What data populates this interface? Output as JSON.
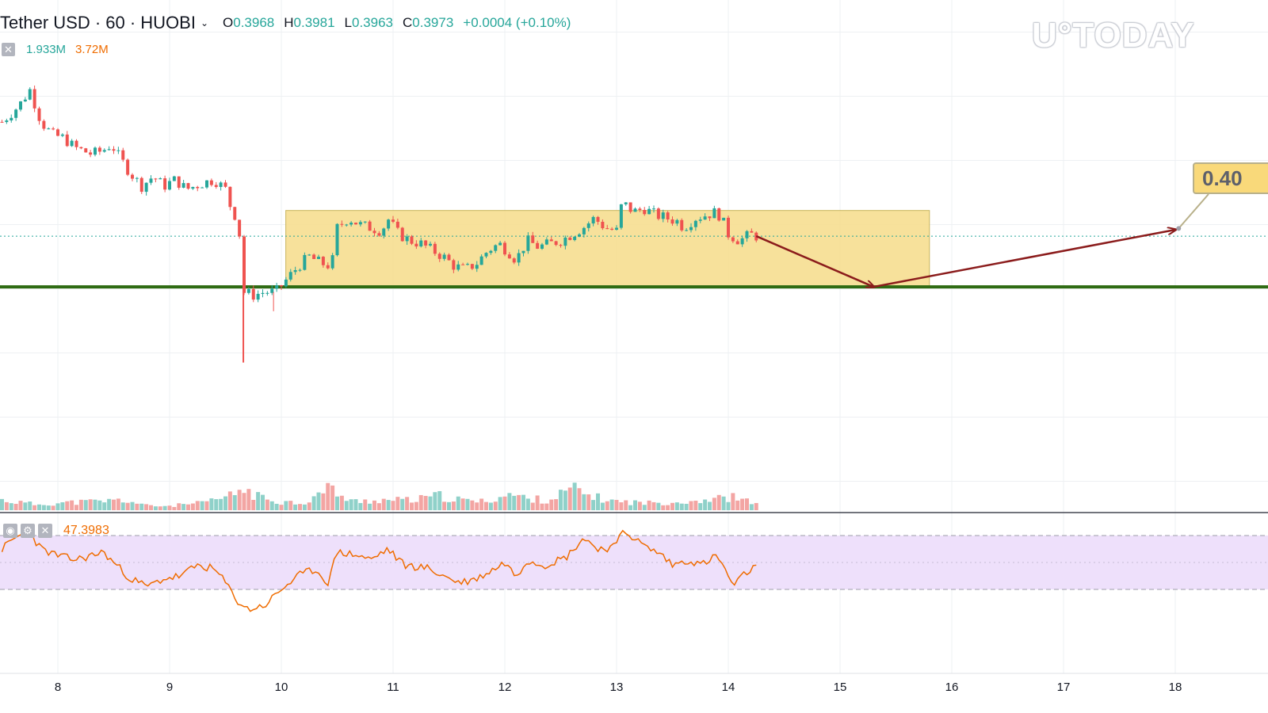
{
  "header": {
    "symbol": "Tether USD · 60 · HUOBI",
    "ohlc": [
      {
        "key": "O",
        "value": "0.3968"
      },
      {
        "key": "H",
        "value": "0.3981"
      },
      {
        "key": "L",
        "value": "0.3963"
      },
      {
        "key": "C",
        "value": "0.3973"
      }
    ],
    "change": "+0.0004 (+0.10%)"
  },
  "volume_legend": {
    "value": "1.933M",
    "ma": "3.72M"
  },
  "rsi_legend": {
    "value": "47.3983"
  },
  "watermark": "U°TODAY",
  "target_label": "0.40",
  "colors": {
    "up": "#26a69a",
    "down": "#ef5350",
    "support": "#2e6b12",
    "arrow": "#8b1c1c",
    "range_fill": "#f6dc8a",
    "rsi_line": "#ef6c00",
    "rsi_band": "#eee0fb"
  },
  "chart_data": {
    "type": "candlestick",
    "x_labels": [
      "8",
      "9",
      "10",
      "11",
      "12",
      "13",
      "14",
      "15",
      "16",
      "17",
      "18"
    ],
    "y_range": [
      0.35,
      0.43
    ],
    "support_level": 0.3853,
    "range_box": {
      "x_start": 10.04,
      "x_end": 15.8,
      "y_low": 0.3853,
      "y_high": 0.3972
    },
    "last_price": 0.3932,
    "projection": [
      [
        14.25,
        0.3932
      ],
      [
        15.3,
        0.3853
      ],
      [
        18.0,
        0.3942
      ]
    ],
    "target_point": [
      18.03,
      0.3944
    ],
    "rsi_bands": [
      30,
      70
    ],
    "price_path": [
      [
        7.5,
        0.411
      ],
      [
        7.65,
        0.4135
      ],
      [
        7.75,
        0.416
      ],
      [
        7.85,
        0.411
      ],
      [
        7.95,
        0.409
      ],
      [
        8.05,
        0.4085
      ],
      [
        8.15,
        0.407
      ],
      [
        8.3,
        0.406
      ],
      [
        8.4,
        0.4065
      ],
      [
        8.48,
        0.4075
      ],
      [
        8.55,
        0.4055
      ],
      [
        8.65,
        0.403
      ],
      [
        8.75,
        0.401
      ],
      [
        8.85,
        0.4025
      ],
      [
        8.95,
        0.401
      ],
      [
        9.05,
        0.402
      ],
      [
        9.15,
        0.4005
      ],
      [
        9.3,
        0.4015
      ],
      [
        9.4,
        0.402
      ],
      [
        9.5,
        0.4005
      ],
      [
        9.55,
        0.3975
      ],
      [
        9.6,
        0.396
      ],
      [
        9.63,
        0.393
      ],
      [
        9.66,
        0.3845
      ],
      [
        9.75,
        0.384
      ],
      [
        9.85,
        0.3845
      ],
      [
        9.95,
        0.3845
      ],
      [
        10.05,
        0.3865
      ],
      [
        10.15,
        0.3885
      ],
      [
        10.25,
        0.39
      ],
      [
        10.35,
        0.389
      ],
      [
        10.45,
        0.3885
      ],
      [
        10.5,
        0.3945
      ],
      [
        10.6,
        0.396
      ],
      [
        10.7,
        0.395
      ],
      [
        10.8,
        0.3945
      ],
      [
        10.9,
        0.394
      ],
      [
        10.95,
        0.396
      ],
      [
        11.05,
        0.3935
      ],
      [
        11.15,
        0.3925
      ],
      [
        11.25,
        0.392
      ],
      [
        11.35,
        0.391
      ],
      [
        11.45,
        0.39
      ],
      [
        11.55,
        0.3885
      ],
      [
        11.65,
        0.388
      ],
      [
        11.75,
        0.389
      ],
      [
        11.85,
        0.391
      ],
      [
        11.95,
        0.392
      ],
      [
        12.05,
        0.3905
      ],
      [
        12.1,
        0.3895
      ],
      [
        12.2,
        0.3925
      ],
      [
        12.3,
        0.3915
      ],
      [
        12.4,
        0.392
      ],
      [
        12.5,
        0.3925
      ],
      [
        12.6,
        0.3935
      ],
      [
        12.7,
        0.3945
      ],
      [
        12.8,
        0.396
      ],
      [
        12.9,
        0.3945
      ],
      [
        13.0,
        0.394
      ],
      [
        13.05,
        0.3985
      ],
      [
        13.15,
        0.397
      ],
      [
        13.25,
        0.3975
      ],
      [
        13.35,
        0.3965
      ],
      [
        13.45,
        0.396
      ],
      [
        13.55,
        0.3955
      ],
      [
        13.6,
        0.3945
      ],
      [
        13.7,
        0.396
      ],
      [
        13.8,
        0.3965
      ],
      [
        13.9,
        0.397
      ],
      [
        13.95,
        0.3955
      ],
      [
        14.0,
        0.3935
      ],
      [
        14.1,
        0.3925
      ],
      [
        14.2,
        0.3935
      ],
      [
        14.25,
        0.3932
      ]
    ],
    "volume_profile": [
      [
        7.5,
        0.35
      ],
      [
        7.8,
        0.2
      ],
      [
        8.0,
        0.25
      ],
      [
        8.3,
        0.3
      ],
      [
        8.6,
        0.35
      ],
      [
        8.8,
        0.15
      ],
      [
        9.0,
        0.15
      ],
      [
        9.3,
        0.25
      ],
      [
        9.55,
        0.5
      ],
      [
        9.65,
        0.75
      ],
      [
        9.8,
        0.45
      ],
      [
        10.0,
        0.3
      ],
      [
        10.2,
        0.25
      ],
      [
        10.45,
        0.8
      ],
      [
        10.6,
        0.3
      ],
      [
        10.9,
        0.35
      ],
      [
        11.2,
        0.35
      ],
      [
        11.4,
        0.5
      ],
      [
        11.6,
        0.35
      ],
      [
        11.8,
        0.3
      ],
      [
        12.05,
        0.55
      ],
      [
        12.2,
        0.4
      ],
      [
        12.4,
        0.35
      ],
      [
        12.6,
        0.75
      ],
      [
        12.8,
        0.45
      ],
      [
        13.0,
        0.3
      ],
      [
        13.3,
        0.25
      ],
      [
        13.6,
        0.3
      ],
      [
        13.9,
        0.4
      ],
      [
        14.05,
        0.45
      ],
      [
        14.25,
        0.2
      ]
    ],
    "rsi_path": [
      [
        7.5,
        60
      ],
      [
        7.65,
        70
      ],
      [
        7.75,
        72
      ],
      [
        7.85,
        60
      ],
      [
        8.0,
        55
      ],
      [
        8.15,
        52
      ],
      [
        8.3,
        55
      ],
      [
        8.4,
        58
      ],
      [
        8.5,
        50
      ],
      [
        8.65,
        38
      ],
      [
        8.8,
        32
      ],
      [
        8.95,
        38
      ],
      [
        9.1,
        40
      ],
      [
        9.25,
        48
      ],
      [
        9.4,
        45
      ],
      [
        9.5,
        35
      ],
      [
        9.6,
        22
      ],
      [
        9.7,
        15
      ],
      [
        9.85,
        18
      ],
      [
        10.0,
        30
      ],
      [
        10.15,
        40
      ],
      [
        10.3,
        45
      ],
      [
        10.42,
        35
      ],
      [
        10.5,
        58
      ],
      [
        10.7,
        55
      ],
      [
        10.8,
        52
      ],
      [
        10.95,
        60
      ],
      [
        11.1,
        48
      ],
      [
        11.3,
        46
      ],
      [
        11.45,
        40
      ],
      [
        11.6,
        35
      ],
      [
        11.75,
        38
      ],
      [
        11.9,
        45
      ],
      [
        12.0,
        50
      ],
      [
        12.1,
        40
      ],
      [
        12.2,
        52
      ],
      [
        12.35,
        48
      ],
      [
        12.55,
        54
      ],
      [
        12.7,
        68
      ],
      [
        12.85,
        60
      ],
      [
        13.0,
        62
      ],
      [
        13.05,
        75
      ],
      [
        13.25,
        62
      ],
      [
        13.4,
        56
      ],
      [
        13.5,
        48
      ],
      [
        13.65,
        52
      ],
      [
        13.75,
        48
      ],
      [
        13.9,
        55
      ],
      [
        14.0,
        40
      ],
      [
        14.05,
        32
      ],
      [
        14.15,
        42
      ],
      [
        14.25,
        47
      ]
    ]
  }
}
